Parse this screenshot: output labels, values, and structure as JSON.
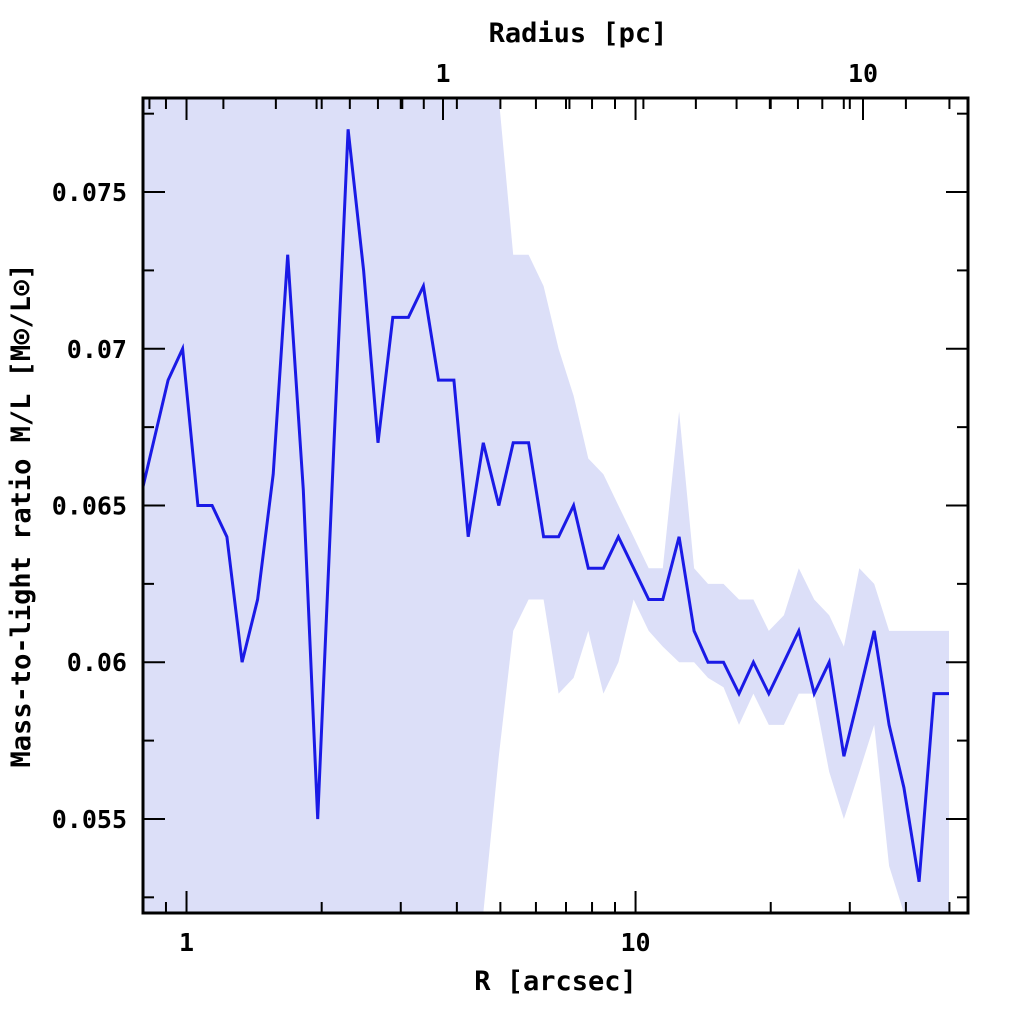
{
  "chart_data": {
    "type": "line",
    "xlabel": "R [arcsec]",
    "ylabel": "Mass-to-light ratio M/L [M⊙/L⊙]",
    "top_axis_label": "Radius [pc]",
    "x_scale": "log",
    "xlim": [
      0.8,
      55
    ],
    "ylim": [
      0.052,
      0.078
    ],
    "x_tick_labels": [
      {
        "value": 1,
        "label": "1"
      },
      {
        "value": 10,
        "label": "10"
      }
    ],
    "top_tick_labels": [
      {
        "value": 1,
        "label": "1"
      },
      {
        "value": 10,
        "label": "10"
      }
    ],
    "y_tick_labels": [
      {
        "value": 0.055,
        "label": "0.055"
      },
      {
        "value": 0.06,
        "label": "0.06"
      },
      {
        "value": 0.065,
        "label": "0.065"
      },
      {
        "value": 0.07,
        "label": "0.07"
      },
      {
        "value": 0.075,
        "label": "0.075"
      }
    ],
    "colors": {
      "line": "#1a1ae6",
      "band": "#dcdff8",
      "axis": "#000000"
    },
    "series": [
      {
        "x": [
          0.8,
          0.91,
          0.98,
          1.06,
          1.14,
          1.23,
          1.33,
          1.44,
          1.56,
          1.68,
          1.82,
          1.96,
          2.13,
          2.29,
          2.48,
          2.67,
          2.88,
          3.12,
          3.37,
          3.64,
          3.94,
          4.24,
          4.58,
          4.96,
          5.34,
          5.78,
          6.24,
          6.74,
          7.28,
          7.85,
          8.48,
          9.16,
          9.9,
          10.7,
          11.5,
          12.5,
          13.5,
          14.5,
          15.7,
          17.0,
          18.3,
          19.8,
          21.4,
          23.1,
          25.0,
          27.0,
          29.1,
          31.5,
          34.0,
          36.7,
          39.6,
          42.8,
          46.2,
          49.9
        ],
        "y": [
          0.0656,
          0.069,
          0.07,
          0.065,
          0.065,
          0.064,
          0.06,
          0.062,
          0.066,
          0.073,
          0.0655,
          0.055,
          0.067,
          0.077,
          0.0725,
          0.067,
          0.071,
          0.071,
          0.072,
          0.069,
          0.069,
          0.064,
          0.067,
          0.065,
          0.067,
          0.067,
          0.064,
          0.064,
          0.065,
          0.063,
          0.063,
          0.064,
          0.063,
          0.062,
          0.062,
          0.064,
          0.061,
          0.06,
          0.06,
          0.059,
          0.06,
          0.059,
          0.06,
          0.061,
          0.059,
          0.06,
          0.057,
          0.059,
          0.061,
          0.058,
          0.056,
          0.053,
          0.059,
          0.059
        ],
        "band_upper": [
          0.078,
          0.078,
          0.078,
          0.078,
          0.078,
          0.078,
          0.078,
          0.078,
          0.078,
          0.078,
          0.078,
          0.078,
          0.078,
          0.078,
          0.078,
          0.078,
          0.078,
          0.078,
          0.078,
          0.078,
          0.078,
          0.078,
          0.078,
          0.078,
          0.073,
          0.073,
          0.072,
          0.07,
          0.0685,
          0.0665,
          0.066,
          0.065,
          0.064,
          0.063,
          0.063,
          0.068,
          0.063,
          0.0625,
          0.0625,
          0.062,
          0.062,
          0.061,
          0.0615,
          0.063,
          0.062,
          0.0615,
          0.0605,
          0.063,
          0.0625,
          0.061,
          0.061,
          0.061,
          0.061,
          0.061
        ],
        "band_lower": [
          0.052,
          0.052,
          0.052,
          0.052,
          0.052,
          0.052,
          0.052,
          0.052,
          0.052,
          0.052,
          0.052,
          0.052,
          0.052,
          0.052,
          0.052,
          0.052,
          0.052,
          0.052,
          0.052,
          0.052,
          0.052,
          0.052,
          0.052,
          0.057,
          0.061,
          0.062,
          0.062,
          0.059,
          0.0595,
          0.061,
          0.059,
          0.06,
          0.062,
          0.061,
          0.0605,
          0.06,
          0.06,
          0.0595,
          0.0592,
          0.058,
          0.059,
          0.058,
          0.058,
          0.059,
          0.059,
          0.0565,
          0.055,
          0.0565,
          0.058,
          0.0535,
          0.052,
          0.052,
          0.052,
          0.052
        ]
      }
    ]
  }
}
